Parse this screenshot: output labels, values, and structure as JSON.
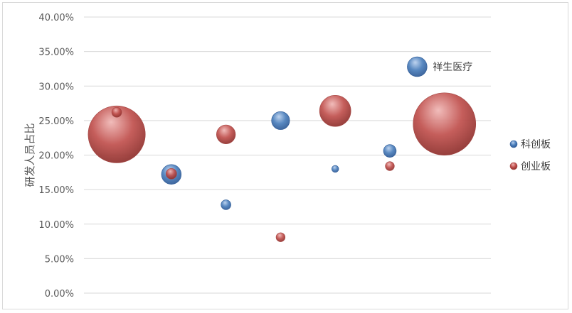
{
  "chart_data": {
    "type": "bubble",
    "ylabel": "研发人员占比",
    "ylim": [
      0,
      40
    ],
    "y_ticks": [
      "0.00%",
      "5.00%",
      "10.00%",
      "15.00%",
      "20.00%",
      "25.00%",
      "30.00%",
      "35.00%",
      "40.00%"
    ],
    "x_positions": [
      1,
      2,
      3,
      4,
      5,
      6,
      7
    ],
    "grid": "horizontal",
    "legend_position": "right",
    "colors": {
      "科创板": "#4a7ebb",
      "创业板": "#c0504d"
    },
    "series": [
      {
        "name": "科创板",
        "points": [
          {
            "x": 2,
            "y": 17.2,
            "size": 12
          },
          {
            "x": 3,
            "y": 12.8,
            "size": 3
          },
          {
            "x": 4,
            "y": 25.0,
            "size": 10
          },
          {
            "x": 5,
            "y": 18.0,
            "size": 1.5
          },
          {
            "x": 6,
            "y": 20.6,
            "size": 5
          },
          {
            "x": 6.5,
            "y": 32.8,
            "size": 12,
            "label": "祥生医疗"
          }
        ]
      },
      {
        "name": "创业板",
        "points": [
          {
            "x": 1,
            "y": 23.0,
            "size": 100
          },
          {
            "x": 1,
            "y": 26.2,
            "size": 3
          },
          {
            "x": 2,
            "y": 17.3,
            "size": 3.5
          },
          {
            "x": 3,
            "y": 23.0,
            "size": 11
          },
          {
            "x": 4,
            "y": 8.1,
            "size": 2.5
          },
          {
            "x": 5,
            "y": 26.4,
            "size": 30
          },
          {
            "x": 6,
            "y": 18.4,
            "size": 2.5
          },
          {
            "x": 7,
            "y": 24.5,
            "size": 120
          }
        ]
      }
    ]
  }
}
